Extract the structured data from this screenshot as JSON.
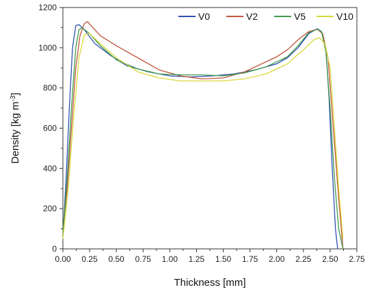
{
  "chart_data": {
    "type": "line",
    "xlabel": "Thickness [mm]",
    "ylabel": {
      "prefix": "Density [kg m",
      "sup": "-3",
      "suffix": "]"
    },
    "xlim": [
      0,
      2.75
    ],
    "ylim": [
      0,
      1200
    ],
    "xticks": [
      "0.00",
      "0.25",
      "0.50",
      "0.75",
      "1.00",
      "1.25",
      "1.50",
      "1.75",
      "2.00",
      "2.25",
      "2.50",
      "2.75"
    ],
    "yticks": [
      "0",
      "200",
      "400",
      "600",
      "800",
      "1000",
      "1200"
    ],
    "grid": false,
    "legend": "top-right",
    "series": [
      {
        "name": "V0",
        "color": "#2f4fb0",
        "x": [
          0.0,
          0.03,
          0.06,
          0.09,
          0.12,
          0.15,
          0.2,
          0.3,
          0.45,
          0.6,
          0.8,
          1.0,
          1.2,
          1.4,
          1.6,
          1.8,
          2.0,
          2.1,
          2.2,
          2.3,
          2.38,
          2.42,
          2.46,
          2.49,
          2.52,
          2.55,
          2.57
        ],
        "y": [
          60,
          350,
          700,
          1000,
          1110,
          1115,
          1090,
          1020,
          960,
          910,
          880,
          860,
          855,
          860,
          870,
          890,
          920,
          950,
          1000,
          1070,
          1095,
          1080,
          1000,
          750,
          400,
          100,
          0
        ]
      },
      {
        "name": "V2",
        "color": "#c0543a",
        "x": [
          0.0,
          0.04,
          0.08,
          0.12,
          0.16,
          0.2,
          0.23,
          0.28,
          0.35,
          0.5,
          0.7,
          0.9,
          1.1,
          1.3,
          1.5,
          1.7,
          1.9,
          2.0,
          2.1,
          2.2,
          2.3,
          2.38,
          2.43,
          2.48,
          2.53,
          2.58,
          2.62
        ],
        "y": [
          90,
          300,
          600,
          900,
          1060,
          1120,
          1130,
          1100,
          1060,
          1010,
          950,
          890,
          860,
          845,
          850,
          880,
          930,
          955,
          990,
          1040,
          1080,
          1092,
          1070,
          950,
          600,
          250,
          0
        ]
      },
      {
        "name": "V5",
        "color": "#3f9a4a",
        "x": [
          0.0,
          0.04,
          0.08,
          0.12,
          0.15,
          0.18,
          0.25,
          0.35,
          0.5,
          0.7,
          0.9,
          1.1,
          1.3,
          1.5,
          1.7,
          1.9,
          2.1,
          2.2,
          2.3,
          2.38,
          2.42,
          2.46,
          2.5,
          2.54,
          2.58,
          2.62
        ],
        "y": [
          80,
          350,
          700,
          1000,
          1090,
          1100,
          1070,
          1010,
          940,
          895,
          870,
          865,
          865,
          860,
          875,
          905,
          955,
          1010,
          1075,
          1092,
          1080,
          980,
          700,
          350,
          100,
          0
        ]
      },
      {
        "name": "V10",
        "color": "#d8d83a",
        "x": [
          0.0,
          0.05,
          0.1,
          0.15,
          0.2,
          0.25,
          0.35,
          0.5,
          0.7,
          0.9,
          1.1,
          1.3,
          1.5,
          1.7,
          1.9,
          2.1,
          2.25,
          2.35,
          2.4,
          2.45,
          2.5,
          2.54,
          2.58,
          2.62
        ],
        "y": [
          50,
          300,
          650,
          950,
          1065,
          1070,
          1020,
          950,
          880,
          850,
          835,
          835,
          835,
          845,
          870,
          920,
          990,
          1040,
          1050,
          1020,
          900,
          600,
          300,
          50
        ]
      }
    ]
  }
}
